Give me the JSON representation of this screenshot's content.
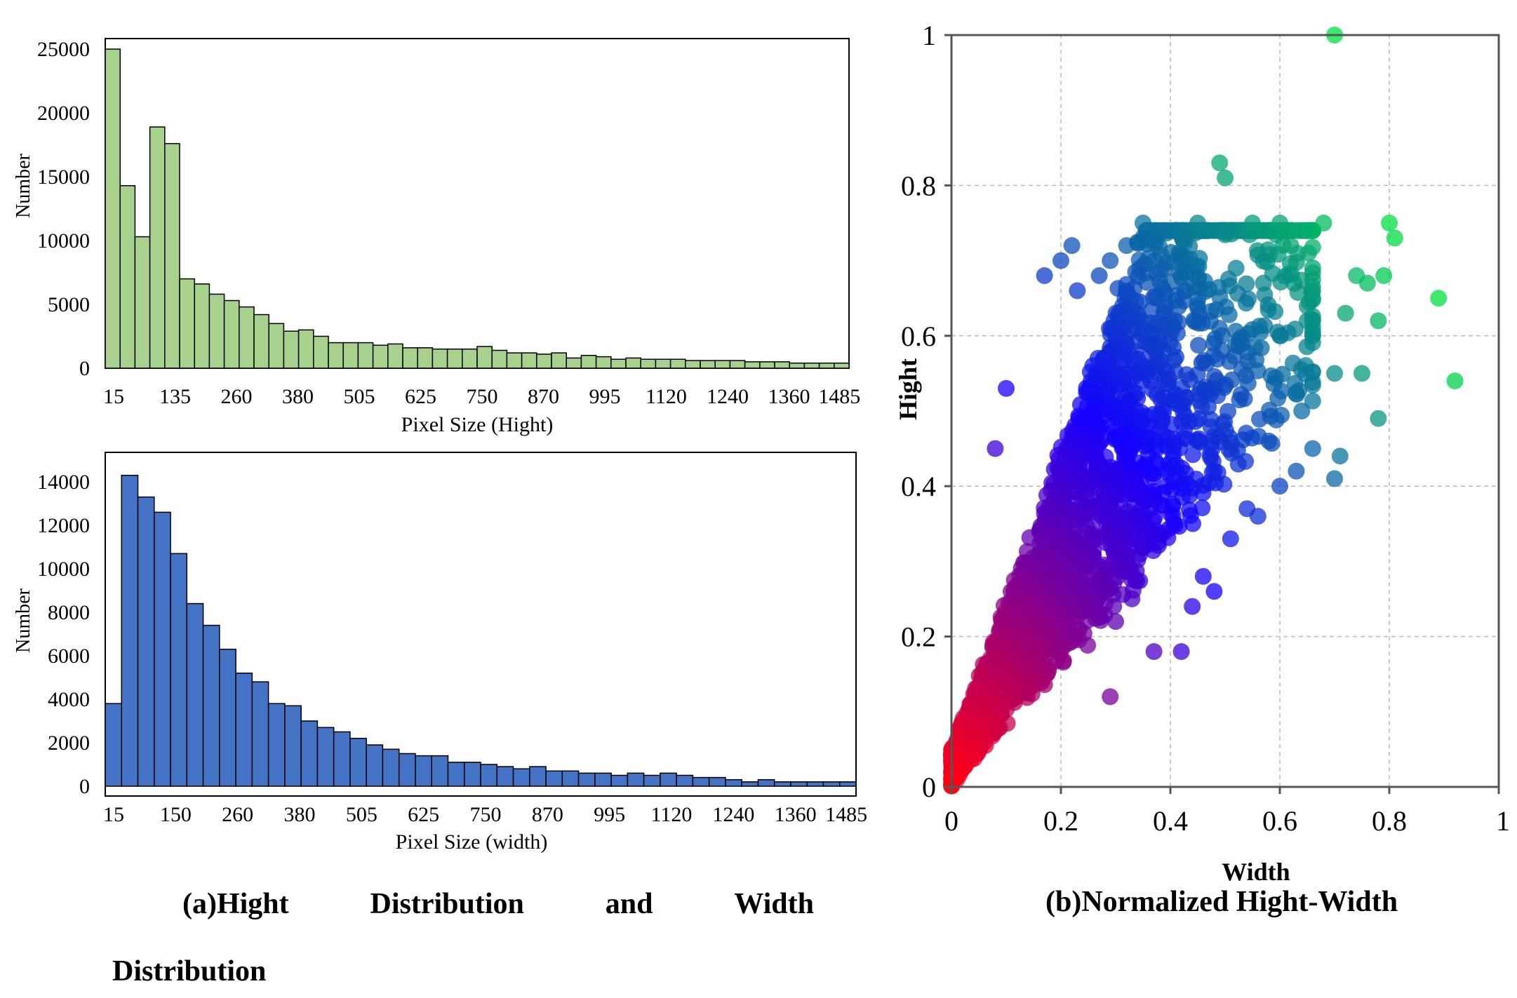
{
  "chart_data": [
    {
      "type": "bar",
      "xlabel": "Pixel Size (Hight)",
      "ylabel": "Number",
      "ylim": [
        0,
        25000
      ],
      "yticks": [
        0,
        5000,
        10000,
        15000,
        20000,
        25000
      ],
      "xtick_labels": [
        "15",
        "135",
        "260",
        "380",
        "505",
        "625",
        "750",
        "870",
        "995",
        "1120",
        "1240",
        "1360",
        "1485"
      ],
      "bar_color": "#a9d18e",
      "values": [
        25000,
        14300,
        10300,
        18900,
        17600,
        7000,
        6600,
        5800,
        5300,
        4800,
        4200,
        3500,
        2900,
        3000,
        2500,
        2000,
        2000,
        2000,
        1800,
        1900,
        1600,
        1600,
        1500,
        1500,
        1500,
        1700,
        1400,
        1200,
        1200,
        1100,
        1200,
        800,
        1000,
        900,
        700,
        800,
        700,
        700,
        700,
        600,
        600,
        600,
        600,
        500,
        500,
        500,
        400,
        400,
        400,
        400
      ]
    },
    {
      "type": "bar",
      "xlabel": "Pixel Size (width)",
      "ylabel": "Number",
      "ylim": [
        0,
        15000
      ],
      "yticks": [
        0,
        2000,
        4000,
        6000,
        8000,
        10000,
        12000,
        14000
      ],
      "xtick_labels": [
        "15",
        "150",
        "260",
        "380",
        "505",
        "625",
        "750",
        "870",
        "995",
        "1120",
        "1240",
        "1360",
        "1485"
      ],
      "bar_color": "#4472c4",
      "values": [
        3800,
        14300,
        13300,
        12600,
        10700,
        8400,
        7400,
        6300,
        5200,
        4800,
        3800,
        3700,
        3000,
        2700,
        2500,
        2200,
        1900,
        1700,
        1500,
        1400,
        1400,
        1100,
        1100,
        1000,
        900,
        800,
        900,
        700,
        700,
        600,
        600,
        500,
        600,
        500,
        600,
        500,
        400,
        400,
        300,
        200,
        300,
        200,
        200,
        200,
        200,
        200
      ]
    },
    {
      "type": "scatter",
      "xlabel": "Width",
      "ylabel": "Hight",
      "xlim": [
        0,
        1
      ],
      "ylim": [
        0,
        1
      ],
      "xtick_labels": [
        "0",
        "0.2",
        "0.4",
        "0.6",
        "0.8",
        "1"
      ],
      "ytick_labels": [
        "0",
        "0.2",
        "0.4",
        "0.6",
        "0.8",
        "1"
      ],
      "grid": true,
      "color_low": "#ff0000",
      "color_mid": "#0000ff",
      "color_high": "#00e040",
      "outlier_points": [
        [
          0.7,
          1.0
        ],
        [
          0.49,
          0.83
        ],
        [
          0.5,
          0.81
        ],
        [
          0.45,
          0.75
        ],
        [
          0.55,
          0.75
        ],
        [
          0.6,
          0.75
        ],
        [
          0.68,
          0.75
        ],
        [
          0.8,
          0.75
        ],
        [
          0.81,
          0.73
        ],
        [
          0.35,
          0.75
        ],
        [
          0.32,
          0.72
        ],
        [
          0.22,
          0.72
        ],
        [
          0.2,
          0.7
        ],
        [
          0.29,
          0.7
        ],
        [
          0.62,
          0.72
        ],
        [
          0.74,
          0.68
        ],
        [
          0.76,
          0.67
        ],
        [
          0.72,
          0.63
        ],
        [
          0.79,
          0.68
        ],
        [
          0.78,
          0.62
        ],
        [
          0.89,
          0.65
        ],
        [
          0.92,
          0.54
        ],
        [
          0.78,
          0.49
        ],
        [
          0.7,
          0.41
        ],
        [
          0.71,
          0.44
        ],
        [
          0.75,
          0.55
        ],
        [
          0.65,
          0.62
        ],
        [
          0.57,
          0.67
        ],
        [
          0.52,
          0.69
        ],
        [
          0.42,
          0.68
        ],
        [
          0.27,
          0.68
        ],
        [
          0.23,
          0.66
        ],
        [
          0.17,
          0.68
        ],
        [
          0.08,
          0.45
        ],
        [
          0.1,
          0.53
        ],
        [
          0.42,
          0.18
        ],
        [
          0.37,
          0.18
        ],
        [
          0.3,
          0.22
        ],
        [
          0.29,
          0.12
        ],
        [
          0.54,
          0.37
        ],
        [
          0.51,
          0.33
        ],
        [
          0.48,
          0.26
        ],
        [
          0.46,
          0.28
        ],
        [
          0.44,
          0.24
        ],
        [
          0.56,
          0.36
        ],
        [
          0.58,
          0.46
        ],
        [
          0.6,
          0.4
        ],
        [
          0.63,
          0.42
        ],
        [
          0.64,
          0.5
        ],
        [
          0.66,
          0.45
        ],
        [
          0.7,
          0.55
        ],
        [
          0.6,
          0.6
        ]
      ]
    }
  ],
  "captions": {
    "a_words": [
      "(a)Hight",
      "Distribution",
      "and",
      "Width"
    ],
    "a_line2": "Distribution",
    "b": "(b)Normalized Hight-Width"
  }
}
